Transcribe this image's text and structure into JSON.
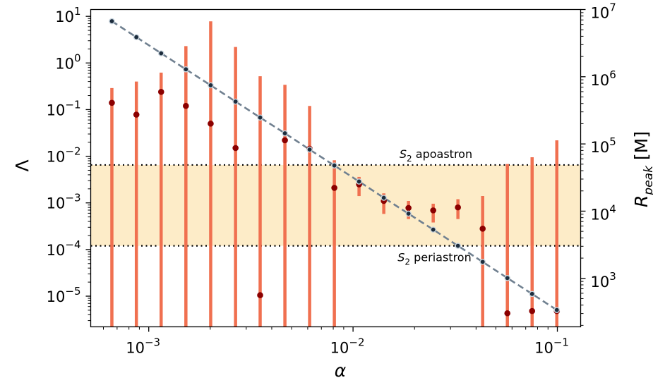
{
  "chart_data": {
    "type": "scatter",
    "xlabel": "α",
    "ylabel_left": "Λ",
    "ylabel_right": {
      "base": "R",
      "sub": "peak",
      "unit": " [M]"
    },
    "xscale": "log",
    "yscale_left": "log",
    "yscale_right": "log",
    "xlim": [
      0.00052,
      0.13
    ],
    "ylim_left": [
      2.2e-06,
      14
    ],
    "ylim_right": [
      190,
      10000000
    ],
    "x_ticks": [
      {
        "value": 0.001,
        "base": "10",
        "exp": "−3"
      },
      {
        "value": 0.01,
        "base": "10",
        "exp": "−2"
      },
      {
        "value": 0.1,
        "base": "10",
        "exp": "−1"
      }
    ],
    "y_ticks_left": [
      {
        "value": 10,
        "base": "10",
        "exp": "1"
      },
      {
        "value": 1,
        "base": "10",
        "exp": "0"
      },
      {
        "value": 0.1,
        "base": "10",
        "exp": "−1"
      },
      {
        "value": 0.01,
        "base": "10",
        "exp": "−2"
      },
      {
        "value": 0.001,
        "base": "10",
        "exp": "−3"
      },
      {
        "value": 0.0001,
        "base": "10",
        "exp": "−4"
      },
      {
        "value": 1e-05,
        "base": "10",
        "exp": "−5"
      }
    ],
    "y_ticks_right": [
      {
        "value": 10000000,
        "base": "10",
        "exp": "7"
      },
      {
        "value": 1000000,
        "base": "10",
        "exp": "6"
      },
      {
        "value": 100000,
        "base": "10",
        "exp": "5"
      },
      {
        "value": 10000,
        "base": "10",
        "exp": "4"
      },
      {
        "value": 1000,
        "base": "10",
        "exp": "3"
      }
    ],
    "band": {
      "ymin": 0.00012,
      "ymax": 0.0065,
      "color": "#fdecc8",
      "upper_label": {
        "s": "S",
        "sub": "2",
        "text": " apoastron"
      },
      "lower_label": {
        "s": "S",
        "sub": "2",
        "text": " periastron"
      }
    },
    "series": [
      {
        "color": "#8b0000",
        "errorbar_color": "#f07050",
        "points": [
          {
            "x": 0.00066,
            "y": 0.14,
            "lo": 2.2e-06,
            "hi": 0.29
          },
          {
            "x": 0.00087,
            "y": 0.078,
            "lo": 2.2e-06,
            "hi": 0.4
          },
          {
            "x": 0.00115,
            "y": 0.24,
            "lo": 2.2e-06,
            "hi": 0.62
          },
          {
            "x": 0.00152,
            "y": 0.12,
            "lo": 2.2e-06,
            "hi": 2.3
          },
          {
            "x": 0.00201,
            "y": 0.05,
            "lo": 2.2e-06,
            "hi": 7.8
          },
          {
            "x": 0.00266,
            "y": 0.015,
            "lo": 2.2e-06,
            "hi": 2.2
          },
          {
            "x": 0.00351,
            "y": 1.05e-05,
            "lo": 2.2e-06,
            "hi": 0.52
          },
          {
            "x": 0.00464,
            "y": 0.022,
            "lo": 2.2e-06,
            "hi": 0.34
          },
          {
            "x": 0.00613,
            "y": 0.0145,
            "lo": 2.2e-06,
            "hi": 0.12
          },
          {
            "x": 0.0081,
            "y": 0.0021,
            "lo": 2.2e-06,
            "hi": 0.0082
          },
          {
            "x": 0.0107,
            "y": 0.0025,
            "lo": 0.0014,
            "hi": 0.0036
          },
          {
            "x": 0.01414,
            "y": 0.0011,
            "lo": 0.00058,
            "hi": 0.0016
          },
          {
            "x": 0.01868,
            "y": 0.00078,
            "lo": 0.00045,
            "hi": 0.0011
          },
          {
            "x": 0.02468,
            "y": 0.00069,
            "lo": 0.00038,
            "hi": 0.00096
          },
          {
            "x": 0.03261,
            "y": 0.0008,
            "lo": 0.00045,
            "hi": 0.0012
          },
          {
            "x": 0.04309,
            "y": 0.00028,
            "lo": 2.2e-06,
            "hi": 0.0014
          },
          {
            "x": 0.05693,
            "y": 4.3e-06,
            "lo": 2.2e-06,
            "hi": 0.0068
          },
          {
            "x": 0.07523,
            "y": 4.8e-06,
            "lo": 2.2e-06,
            "hi": 0.0095
          },
          {
            "x": 0.0994,
            "y": 4.8e-06,
            "lo": 2.2e-06,
            "hi": 0.022
          }
        ]
      },
      {
        "color": "#708090",
        "marker_color": "#1c2c3c",
        "linestyle": "dashed",
        "axis": "right",
        "points": [
          {
            "x": 0.00066,
            "y": 6700000
          },
          {
            "x": 0.00087,
            "y": 3880000
          },
          {
            "x": 0.00115,
            "y": 2230000
          },
          {
            "x": 0.00152,
            "y": 1290000
          },
          {
            "x": 0.00201,
            "y": 746000
          },
          {
            "x": 0.00266,
            "y": 427000
          },
          {
            "x": 0.00351,
            "y": 247000
          },
          {
            "x": 0.00464,
            "y": 144000
          },
          {
            "x": 0.00613,
            "y": 82500
          },
          {
            "x": 0.0081,
            "y": 47800
          },
          {
            "x": 0.0107,
            "y": 27600
          },
          {
            "x": 0.01414,
            "y": 15800
          },
          {
            "x": 0.01868,
            "y": 9180
          },
          {
            "x": 0.02468,
            "y": 5310
          },
          {
            "x": 0.03261,
            "y": 3050
          },
          {
            "x": 0.04309,
            "y": 1760
          },
          {
            "x": 0.05693,
            "y": 1010
          },
          {
            "x": 0.07523,
            "y": 587
          },
          {
            "x": 0.0994,
            "y": 338
          }
        ]
      }
    ]
  }
}
